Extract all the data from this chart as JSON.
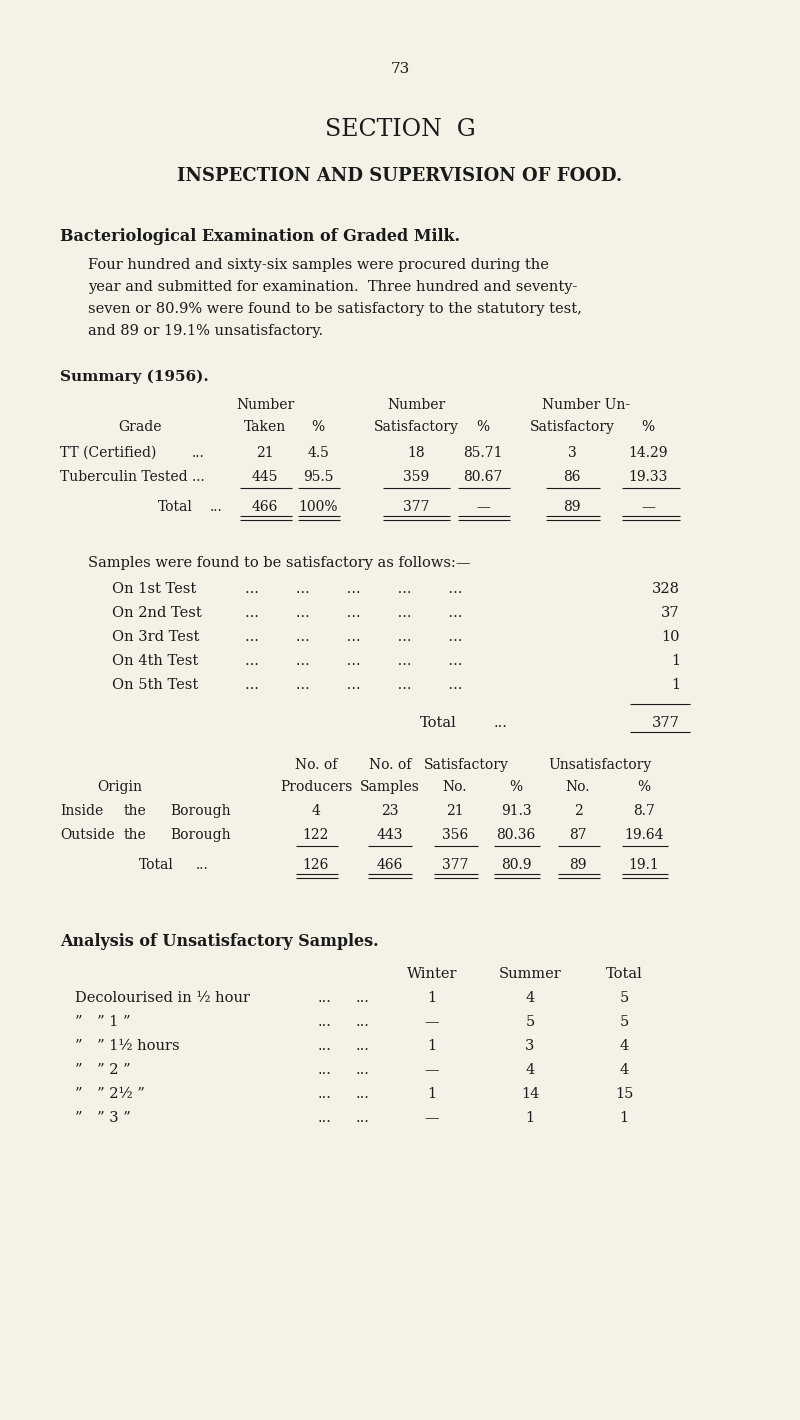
{
  "bg_color": "#f5f1e6",
  "text_color": "#1a1a1a",
  "page_number": "73",
  "title1": "SECTION  G",
  "title2": "INSPECTION AND SUPERVISION OF FOOD.",
  "section_heading": "Bacteriological Examination of Graded Milk.",
  "para_lines": [
    "Four hundred and sixty-six samples were procured during the",
    "year and submitted for examination.  Three hundred and seventy-",
    "seven or 80.9% were found to be satisfactory to the statutory test,",
    "and 89 or 19.1% unsatisfactory."
  ],
  "summary_title": "Summary (1956)."
}
